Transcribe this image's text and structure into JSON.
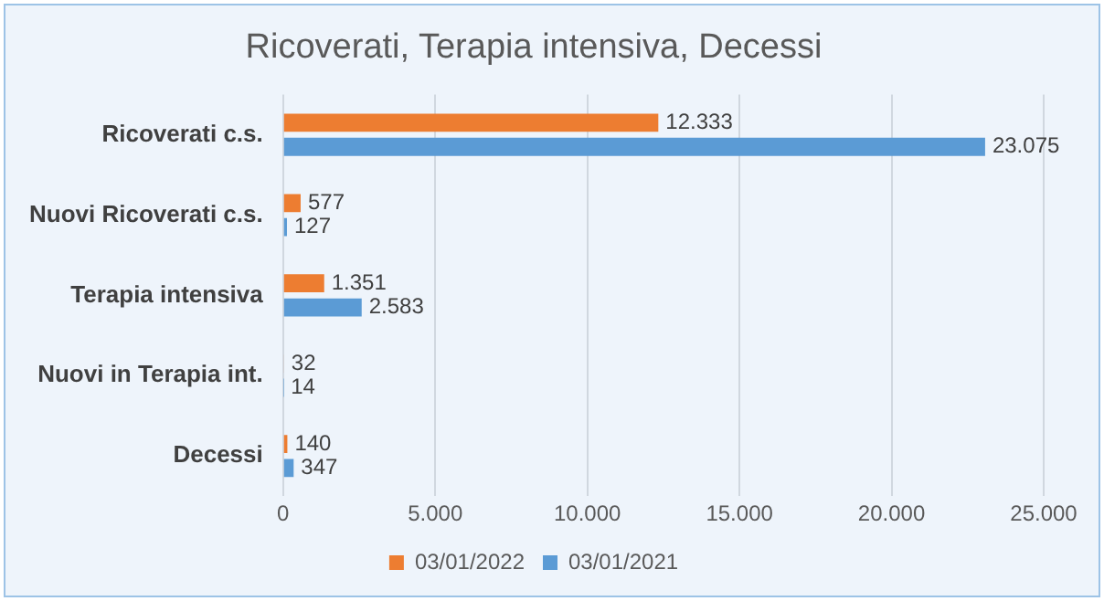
{
  "chart_data": {
    "type": "bar",
    "orientation": "horizontal",
    "title": "Ricoverati, Terapia intensiva, Decessi",
    "categories": [
      "Ricoverati c.s.",
      "Nuovi Ricoverati c.s.",
      "Terapia intensiva",
      "Nuovi in Terapia int.",
      "Decessi"
    ],
    "series": [
      {
        "name": "03/01/2022",
        "color": "#ed7d31",
        "values": [
          12333,
          577,
          1351,
          32,
          140
        ],
        "value_labels": [
          "12.333",
          "577",
          "1.351",
          "32",
          "140"
        ]
      },
      {
        "name": "03/01/2021",
        "color": "#5b9bd5",
        "values": [
          23075,
          127,
          2583,
          14,
          347
        ],
        "value_labels": [
          "23.075",
          "127",
          "2.583",
          "14",
          "347"
        ]
      }
    ],
    "xlim": [
      0,
      25000
    ],
    "xticks": [
      0,
      {
        "value": 5000,
        "label": "5.000"
      },
      {
        "value": 10000,
        "label": "10.000"
      },
      {
        "value": 15000,
        "label": "15.000"
      },
      {
        "value": 20000,
        "label": "20.000"
      },
      {
        "value": 25000,
        "label": "25.000"
      }
    ],
    "grid": "x",
    "legend": "bottom"
  }
}
